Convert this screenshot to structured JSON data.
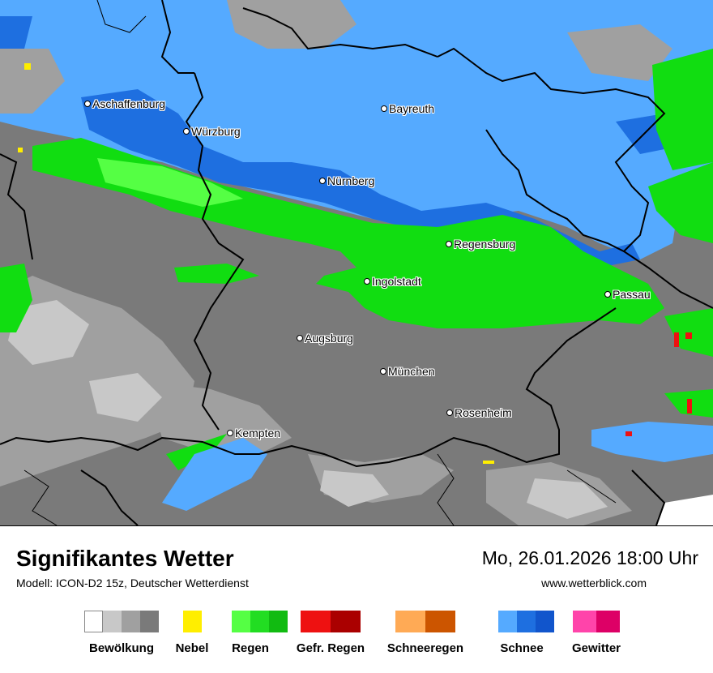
{
  "map": {
    "cities": [
      {
        "name": "Aschaffenburg"
      },
      {
        "name": "Würzburg"
      },
      {
        "name": "Bayreuth"
      },
      {
        "name": "Nürnberg"
      },
      {
        "name": "Regensburg"
      },
      {
        "name": "Ingolstadt"
      },
      {
        "name": "Passau"
      },
      {
        "name": "Augsburg"
      },
      {
        "name": "München"
      },
      {
        "name": "Rosenheim"
      },
      {
        "name": "Kempten"
      }
    ]
  },
  "footer": {
    "title": "Signifikantes Wetter",
    "model": "Modell: ICON-D2 15z, Deutscher Wetterdienst",
    "datetime": "Mo, 26.01.2026 18:00 Uhr",
    "website": "www.wetterblick.com"
  },
  "legend": [
    {
      "label": "Bewölkung",
      "colors": [
        "#ffffff",
        "#c8c8c8",
        "#a0a0a0",
        "#7a7a7a"
      ]
    },
    {
      "label": "Nebel",
      "colors": [
        "#ffee00"
      ]
    },
    {
      "label": "Regen",
      "colors": [
        "#55ff44",
        "#22dd22",
        "#11bb11"
      ]
    },
    {
      "label": "Gefr. Regen",
      "colors": [
        "#ee1111",
        "#aa0000"
      ]
    },
    {
      "label": "Schneeregen",
      "colors": [
        "#ffaa55",
        "#cc5500"
      ]
    },
    {
      "label": "Schnee",
      "colors": [
        "#55aaff",
        "#1e6fe0",
        "#1155cc"
      ]
    },
    {
      "label": "Gewitter",
      "colors": [
        "#ff44aa",
        "#dd0066"
      ]
    }
  ],
  "colors": {
    "cloud_dark": "#7a7a7a",
    "cloud_mid": "#a0a0a0",
    "cloud_light": "#c8c8c8",
    "rain": "#11dd11",
    "rain_light": "#55ff44",
    "snow": "#55aaff",
    "snow_dark": "#1e6fe0",
    "freezing_rain": "#ee1111",
    "borders": "#000000"
  }
}
